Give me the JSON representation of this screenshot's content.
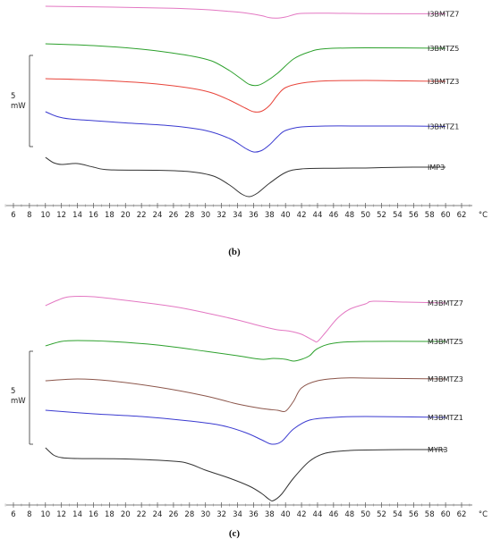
{
  "chart_data": [
    {
      "panel_label": "(b)",
      "type": "line",
      "xunit": "°C",
      "xlim": [
        4.5,
        65
      ],
      "xticks": [
        6,
        8,
        10,
        12,
        14,
        16,
        18,
        20,
        22,
        24,
        26,
        28,
        30,
        32,
        34,
        36,
        38,
        40,
        42,
        44,
        46,
        48,
        50,
        52,
        54,
        56,
        58,
        60,
        62
      ],
      "scale_bar": {
        "value": "5",
        "unit": "mW"
      },
      "grid": false,
      "series": [
        {
          "name": "I3BMTZ7",
          "color": "#e377c2",
          "points": [
            [
              10,
              7
            ],
            [
              20,
              8.2
            ],
            [
              26,
              9.2
            ],
            [
              30,
              10.8
            ],
            [
              33,
              12.8
            ],
            [
              35,
              14.5
            ],
            [
              37,
              17.5
            ],
            [
              38,
              19.8
            ],
            [
              39,
              20.2
            ],
            [
              40,
              19
            ],
            [
              41,
              16.5
            ],
            [
              42,
              15
            ],
            [
              45,
              14.8
            ],
            [
              50,
              15.2
            ],
            [
              60,
              15.4
            ]
          ]
        },
        {
          "name": "I3BMTZ5",
          "color": "#2ca02c",
          "points": [
            [
              10,
              49
            ],
            [
              16,
              51
            ],
            [
              22,
              55
            ],
            [
              26,
              59.5
            ],
            [
              29,
              64
            ],
            [
              31,
              69
            ],
            [
              33,
              79
            ],
            [
              34.5,
              88.5
            ],
            [
              35.5,
              94.5
            ],
            [
              36.5,
              95.5
            ],
            [
              37.5,
              91.5
            ],
            [
              39,
              82
            ],
            [
              41,
              66
            ],
            [
              43,
              58
            ],
            [
              45,
              54.5
            ],
            [
              50,
              53.5
            ],
            [
              60,
              54
            ]
          ]
        },
        {
          "name": "I3BMTZ3",
          "color": "#e8443a",
          "points": [
            [
              10,
              88
            ],
            [
              16,
              89.5
            ],
            [
              22,
              92.5
            ],
            [
              26,
              96
            ],
            [
              29,
              100
            ],
            [
              31,
              104.5
            ],
            [
              33,
              112
            ],
            [
              35,
              121
            ],
            [
              36,
              125
            ],
            [
              37,
              124.5
            ],
            [
              38,
              118
            ],
            [
              39,
              106.5
            ],
            [
              40,
              98
            ],
            [
              42,
              93
            ],
            [
              45,
              90.5
            ],
            [
              50,
              90
            ],
            [
              55,
              90.5
            ],
            [
              60,
              91
            ]
          ]
        },
        {
          "name": "I3BMTZ1",
          "color": "#3a3ad0",
          "points": [
            [
              10,
              125
            ],
            [
              11.5,
              130.5
            ],
            [
              13,
              133
            ],
            [
              16,
              135
            ],
            [
              20,
              137.5
            ],
            [
              26,
              141
            ],
            [
              30,
              146
            ],
            [
              33,
              155
            ],
            [
              35,
              166
            ],
            [
              36,
              170
            ],
            [
              37,
              168.5
            ],
            [
              38,
              162
            ],
            [
              39,
              153
            ],
            [
              40,
              146
            ],
            [
              42,
              142
            ],
            [
              45,
              141
            ],
            [
              50,
              141
            ],
            [
              55,
              141
            ],
            [
              60,
              141.5
            ]
          ]
        },
        {
          "name": "IMP3",
          "color": "#333333",
          "points": [
            [
              10,
              176
            ],
            [
              11,
              182
            ],
            [
              12,
              184
            ],
            [
              14,
              183
            ],
            [
              16,
              187
            ],
            [
              18,
              190
            ],
            [
              24,
              190.5
            ],
            [
              28,
              192
            ],
            [
              31,
              197
            ],
            [
              33,
              207
            ],
            [
              34.5,
              217
            ],
            [
              35.5,
              220
            ],
            [
              36.5,
              216
            ],
            [
              38,
              205
            ],
            [
              40,
              193
            ],
            [
              42,
              189
            ],
            [
              46,
              188.2
            ],
            [
              50,
              188
            ],
            [
              52,
              187.5
            ],
            [
              56,
              187
            ],
            [
              60,
              187
            ]
          ]
        }
      ]
    },
    {
      "panel_label": "(c)",
      "type": "line",
      "xunit": "°C",
      "xlim": [
        4.5,
        65
      ],
      "xticks": [
        6,
        8,
        10,
        12,
        14,
        16,
        18,
        20,
        22,
        24,
        26,
        28,
        30,
        32,
        34,
        36,
        38,
        40,
        42,
        44,
        46,
        48,
        50,
        52,
        54,
        56,
        58,
        60,
        62
      ],
      "scale_bar": {
        "value": "5",
        "unit": "mW"
      },
      "grid": false,
      "series": [
        {
          "name": "M3BMTZ7",
          "color": "#e377c2",
          "points": [
            [
              10,
              342
            ],
            [
              11.5,
              336
            ],
            [
              13,
              332
            ],
            [
              16,
              332
            ],
            [
              20,
              336
            ],
            [
              26,
              343
            ],
            [
              30,
              350
            ],
            [
              34,
              358
            ],
            [
              37,
              365
            ],
            [
              39,
              369
            ],
            [
              40.5,
              370.5
            ],
            [
              42,
              374
            ],
            [
              43.5,
              381
            ],
            [
              44,
              382
            ],
            [
              45,
              372
            ],
            [
              46.5,
              356
            ],
            [
              48,
              346
            ],
            [
              50,
              340
            ],
            [
              51,
              337
            ],
            [
              55,
              338
            ],
            [
              60,
              339
            ]
          ]
        },
        {
          "name": "M3BMTZ5",
          "color": "#2ca02c",
          "points": [
            [
              10,
              387
            ],
            [
              12,
              382
            ],
            [
              14,
              381
            ],
            [
              18,
              382
            ],
            [
              24,
              386
            ],
            [
              30,
              393
            ],
            [
              34,
              398
            ],
            [
              37,
              402
            ],
            [
              38.5,
              401
            ],
            [
              40,
              402
            ],
            [
              41,
              404
            ],
            [
              42,
              402
            ],
            [
              43,
              398
            ],
            [
              44,
              390
            ],
            [
              46,
              384
            ],
            [
              50,
              382
            ],
            [
              60,
              382
            ]
          ]
        },
        {
          "name": "M3BMTZ3",
          "color": "#8c564b",
          "points": [
            [
              10,
              426
            ],
            [
              14,
              424
            ],
            [
              18,
              426
            ],
            [
              24,
              433
            ],
            [
              30,
              443
            ],
            [
              34,
              452
            ],
            [
              37,
              457
            ],
            [
              39,
              459
            ],
            [
              40,
              460
            ],
            [
              41,
              449
            ],
            [
              42,
              434
            ],
            [
              44,
              426
            ],
            [
              47,
              423
            ],
            [
              50,
              423
            ],
            [
              60,
              424
            ]
          ]
        },
        {
          "name": "M3BMTZ1",
          "color": "#3a3ad0",
          "points": [
            [
              10,
              459
            ],
            [
              16,
              463
            ],
            [
              22,
              466
            ],
            [
              28,
              471
            ],
            [
              32,
              476
            ],
            [
              35,
              484
            ],
            [
              37,
              492
            ],
            [
              38.3,
              497
            ],
            [
              39.5,
              494
            ],
            [
              41,
              480
            ],
            [
              43,
              470
            ],
            [
              46,
              467
            ],
            [
              50,
              466
            ],
            [
              60,
              467
            ]
          ]
        },
        {
          "name": "MYR3",
          "color": "#333333",
          "points": [
            [
              10,
              501
            ],
            [
              11,
              509
            ],
            [
              12,
              512
            ],
            [
              14,
              513
            ],
            [
              20,
              513.5
            ],
            [
              26,
              516
            ],
            [
              28,
              519
            ],
            [
              30,
              526
            ],
            [
              33,
              535
            ],
            [
              35.5,
              544
            ],
            [
              37,
              552
            ],
            [
              38,
              559
            ],
            [
              38.5,
              560
            ],
            [
              39.5,
              553
            ],
            [
              41,
              535
            ],
            [
              43,
              516
            ],
            [
              45,
              507
            ],
            [
              48,
              504
            ],
            [
              50,
              503.5
            ],
            [
              55,
              503
            ],
            [
              60,
              503
            ]
          ]
        }
      ]
    }
  ]
}
